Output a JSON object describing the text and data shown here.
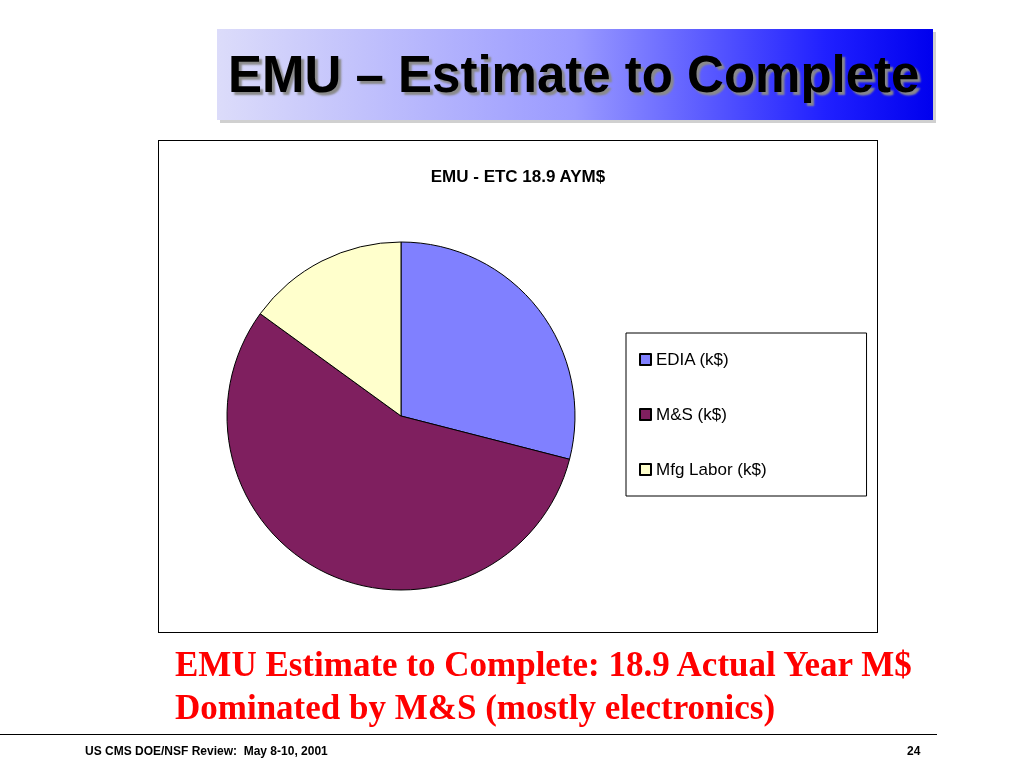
{
  "chart_data": {
    "type": "pie",
    "title": "EMU - ETC 18.9 AYM$",
    "categories": [
      "EDIA (k$)",
      "M&S (k$)",
      "Mfg Labor (k$)"
    ],
    "values": [
      29,
      56,
      15
    ],
    "colors": [
      "#8080ff",
      "#7f1f5f",
      "#ffffcc"
    ],
    "legend": "right",
    "annotations": [
      "EMU – Estimate to Complete",
      "EMU Estimate to Complete: 18.9 Actual Year M$",
      "Dominated by M&S (mostly electronics)",
      "US CMS DOE/NSF Review:  May 8-10, 2001",
      "24"
    ]
  }
}
